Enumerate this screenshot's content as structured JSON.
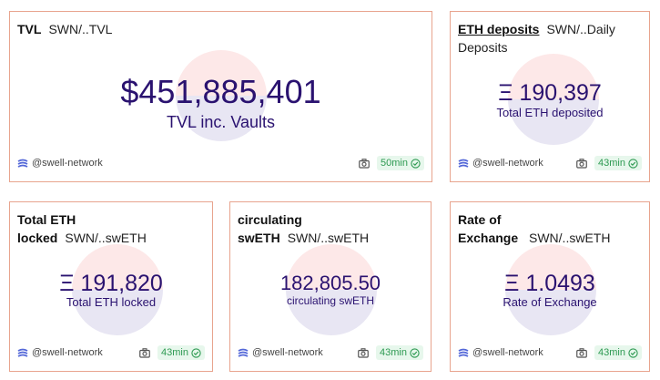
{
  "colors": {
    "border": "#e8a48e",
    "value": "#2a1270",
    "badge_bg": "#e7f7ec",
    "badge_text": "#2e9a52",
    "logo": "#5468d8"
  },
  "cards": {
    "tvl": {
      "title": "TVL",
      "source": "SWN/..TVL",
      "value": "$451,885,401",
      "label": "TVL inc. Vaults",
      "handle": "@swell-network",
      "freshness": "50min"
    },
    "deposits": {
      "title": "ETH deposits",
      "source": "SWN/..Daily Deposits",
      "value": "Ξ 190,397",
      "label": "Total ETH deposited",
      "handle": "@swell-network",
      "freshness": "43min"
    },
    "locked": {
      "title": "Total ETH locked",
      "source": "SWN/..swETH",
      "value": "Ξ 191,820",
      "label": "Total ETH locked",
      "handle": "@swell-network",
      "freshness": "43min"
    },
    "circulating": {
      "title": "circulating swETH",
      "source": "SWN/..swETH",
      "value": "182,805.50",
      "label": "circulating swETH",
      "handle": "@swell-network",
      "freshness": "43min"
    },
    "rate": {
      "title": "Rate of Exchange",
      "source": "SWN/..swETH",
      "value": "Ξ 1.0493",
      "label": "Rate of Exchange",
      "handle": "@swell-network",
      "freshness": "43min"
    }
  },
  "icons": {
    "logo": "swell-network-logo-icon",
    "camera": "camera-icon",
    "check": "check-circle-icon"
  }
}
